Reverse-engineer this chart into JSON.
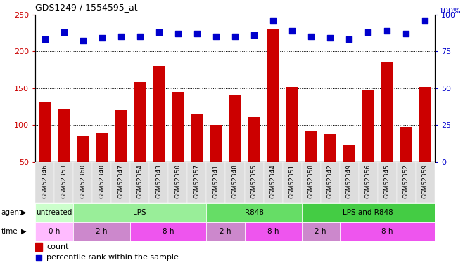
{
  "title": "GDS1249 / 1554595_at",
  "samples": [
    "GSM52346",
    "GSM52353",
    "GSM52360",
    "GSM52340",
    "GSM52347",
    "GSM52354",
    "GSM52343",
    "GSM52350",
    "GSM52357",
    "GSM52341",
    "GSM52348",
    "GSM52355",
    "GSM52344",
    "GSM52351",
    "GSM52358",
    "GSM52342",
    "GSM52349",
    "GSM52356",
    "GSM52345",
    "GSM52352",
    "GSM52359"
  ],
  "counts": [
    132,
    121,
    85,
    89,
    120,
    158,
    180,
    145,
    115,
    100,
    140,
    111,
    230,
    152,
    92,
    88,
    73,
    147,
    186,
    98,
    152
  ],
  "percentiles": [
    83,
    88,
    82,
    84,
    85,
    85,
    88,
    87,
    87,
    85,
    85,
    86,
    96,
    89,
    85,
    84,
    83,
    88,
    89,
    87,
    96
  ],
  "ylim_left": [
    50,
    250
  ],
  "ylim_right": [
    0,
    100
  ],
  "yticks_left": [
    50,
    100,
    150,
    200,
    250
  ],
  "yticks_right": [
    0,
    25,
    50,
    75,
    100
  ],
  "bar_color": "#cc0000",
  "dot_color": "#0000cc",
  "agent_groups": [
    {
      "label": "untreated",
      "start": 0,
      "end": 2,
      "color": "#ccffcc"
    },
    {
      "label": "LPS",
      "start": 2,
      "end": 9,
      "color": "#99ee99"
    },
    {
      "label": "R848",
      "start": 9,
      "end": 14,
      "color": "#66dd66"
    },
    {
      "label": "LPS and R848",
      "start": 14,
      "end": 21,
      "color": "#44cc44"
    }
  ],
  "time_groups": [
    {
      "label": "0 h",
      "start": 0,
      "end": 2,
      "color": "#ffbbff"
    },
    {
      "label": "2 h",
      "start": 2,
      "end": 5,
      "color": "#cc88cc"
    },
    {
      "label": "8 h",
      "start": 5,
      "end": 9,
      "color": "#ee55ee"
    },
    {
      "label": "2 h",
      "start": 9,
      "end": 11,
      "color": "#cc88cc"
    },
    {
      "label": "8 h",
      "start": 11,
      "end": 14,
      "color": "#ee55ee"
    },
    {
      "label": "2 h",
      "start": 14,
      "end": 16,
      "color": "#cc88cc"
    },
    {
      "label": "8 h",
      "start": 16,
      "end": 21,
      "color": "#ee55ee"
    }
  ],
  "legend_count_label": "count",
  "legend_pct_label": "percentile rank within the sample",
  "left_axis_color": "#cc0000",
  "right_axis_color": "#0000cc",
  "right_axis_label": "100%",
  "bg_color": "#ffffff",
  "xticklabel_bg": "#dddddd"
}
